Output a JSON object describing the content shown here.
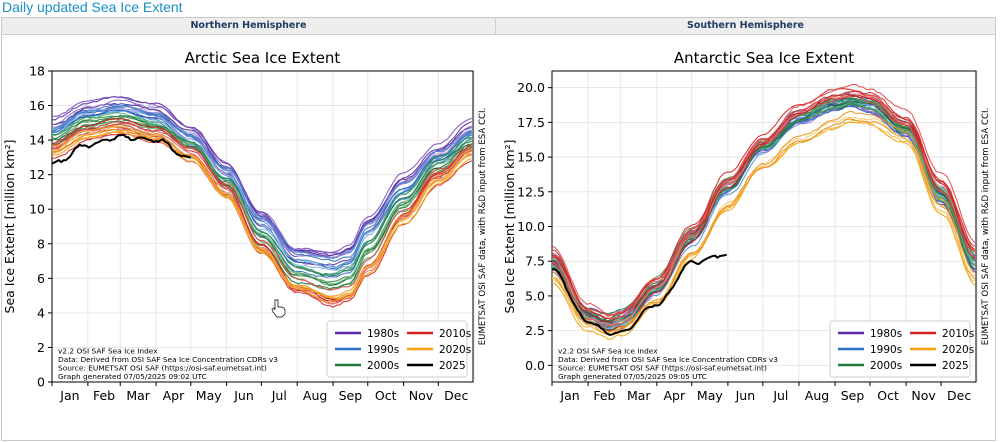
{
  "page_title": "Daily updated Sea Ice Extent",
  "panels": {
    "north": {
      "header": "Northern Hemisphere"
    },
    "south": {
      "header": "Southern Hemisphere"
    }
  },
  "icons": {
    "cursor": "hand-pointer-icon"
  },
  "chart_data": [
    {
      "type": "line",
      "title": "Arctic Sea Ice Extent",
      "xlabel": "",
      "ylabel": "Sea Ice Extent [million km²]",
      "x_ticks": [
        "Jan",
        "Feb",
        "Mar",
        "Apr",
        "May",
        "Jun",
        "Jul",
        "Aug",
        "Sep",
        "Oct",
        "Nov",
        "Dec"
      ],
      "y_ticks": [
        "0",
        "2",
        "4",
        "6",
        "8",
        "10",
        "12",
        "14",
        "16",
        "18"
      ],
      "ylim": [
        0,
        18
      ],
      "grid": true,
      "legend_position": "bottom-right",
      "legend": [
        {
          "label": "1980s",
          "color": "#5b2aa6"
        },
        {
          "label": "1990s",
          "color": "#2b73c2"
        },
        {
          "label": "2000s",
          "color": "#1f7a3a"
        },
        {
          "label": "2010s",
          "color": "#d62020"
        },
        {
          "label": "2020s",
          "color": "#f2a20c"
        },
        {
          "label": "2025",
          "color": "#000000"
        }
      ],
      "annotation": [
        "v2.2 OSI SAF Sea Ice Index",
        "Data: Derived from OSI SAF Sea Ice Concentration CDRs v3",
        "Source: EUMETSAT OSI SAF (https://osi-saf.eumetsat.int)",
        "Graph generated 07/05/2025 09:02 UTC"
      ],
      "side_note": "EUMETSAT OSI SAF data, with R&D input from ESA CCI.",
      "x_day": [
        1,
        32,
        60,
        91,
        121,
        152,
        182,
        213,
        244,
        258,
        274,
        305,
        335,
        365
      ],
      "series": [
        {
          "name": "1980s",
          "values": [
            14.8,
            15.8,
            16.1,
            15.7,
            14.5,
            12.4,
            9.6,
            7.5,
            7.3,
            7.6,
            9.2,
            11.6,
            13.3,
            14.7
          ]
        },
        {
          "name": "1990s",
          "values": [
            14.5,
            15.5,
            15.8,
            15.3,
            14.0,
            12.0,
            9.1,
            7.0,
            6.6,
            6.9,
            8.6,
            11.0,
            12.9,
            14.3
          ]
        },
        {
          "name": "2000s",
          "values": [
            14.0,
            15.0,
            15.3,
            14.8,
            13.7,
            11.5,
            8.4,
            6.2,
            5.7,
            6.0,
            7.6,
            10.3,
            12.5,
            13.8
          ]
        },
        {
          "name": "2010s",
          "values": [
            13.5,
            14.5,
            14.8,
            14.3,
            13.2,
            11.0,
            7.7,
            5.4,
            4.7,
            5.0,
            6.6,
            9.6,
            12.0,
            13.4
          ]
        },
        {
          "name": "2020s",
          "values": [
            13.3,
            14.3,
            14.6,
            14.1,
            13.0,
            10.8,
            7.6,
            5.5,
            4.9,
            5.1,
            6.6,
            9.4,
            11.7,
            13.2
          ]
        },
        {
          "name": "2025",
          "values": [
            12.6,
            13.7,
            14.2,
            14.0,
            12.9
          ]
        }
      ]
    },
    {
      "type": "line",
      "title": "Antarctic Sea Ice Extent",
      "xlabel": "",
      "ylabel": "Sea Ice Extent [million km²]",
      "x_ticks": [
        "Jan",
        "Feb",
        "Mar",
        "Apr",
        "May",
        "Jun",
        "Jul",
        "Aug",
        "Sep",
        "Oct",
        "Nov",
        "Dec"
      ],
      "y_ticks": [
        "0.0",
        "2.5",
        "5.0",
        "7.5",
        "10.0",
        "12.5",
        "15.0",
        "17.5",
        "20.0"
      ],
      "ylim": [
        -1.2,
        21.2
      ],
      "grid": true,
      "legend_position": "bottom-right",
      "legend": [
        {
          "label": "1980s",
          "color": "#5b2aa6"
        },
        {
          "label": "1990s",
          "color": "#2b73c2"
        },
        {
          "label": "2000s",
          "color": "#1f7a3a"
        },
        {
          "label": "2010s",
          "color": "#d62020"
        },
        {
          "label": "2020s",
          "color": "#f2a20c"
        },
        {
          "label": "2025",
          "color": "#000000"
        }
      ],
      "annotation": [
        "v2.2 OSI SAF Sea Ice Index",
        "Data: Derived from OSI SAF Sea Ice Concentration CDRs v3",
        "Source: EUMETSAT OSI SAF (https://osi-saf.eumetsat.int)",
        "Graph generated 07/05/2025 09:05 UTC"
      ],
      "side_note": "EUMETSAT OSI SAF data, with R&D input from ESA CCI.",
      "x_day": [
        1,
        32,
        50,
        60,
        91,
        121,
        152,
        182,
        213,
        244,
        258,
        274,
        305,
        335,
        365
      ],
      "series": [
        {
          "name": "1980s",
          "values": [
            7.5,
            3.6,
            3.0,
            3.3,
            5.6,
            9.2,
            12.8,
            15.6,
            17.6,
            18.7,
            18.9,
            18.6,
            16.9,
            12.2,
            7.4
          ]
        },
        {
          "name": "1990s",
          "values": [
            7.3,
            3.5,
            2.9,
            3.2,
            5.5,
            9.1,
            12.7,
            15.6,
            17.7,
            18.8,
            19.0,
            18.7,
            17.0,
            12.4,
            7.5
          ]
        },
        {
          "name": "2000s",
          "values": [
            7.6,
            3.7,
            3.1,
            3.4,
            5.7,
            9.3,
            12.9,
            15.7,
            17.7,
            18.8,
            19.0,
            18.8,
            17.1,
            12.5,
            7.6
          ]
        },
        {
          "name": "2010s",
          "values": [
            7.9,
            3.8,
            3.2,
            3.5,
            5.9,
            9.6,
            13.3,
            16.1,
            18.3,
            19.4,
            19.6,
            19.3,
            17.6,
            13.1,
            8.2
          ]
        },
        {
          "name": "2020s",
          "values": [
            6.4,
            2.9,
            2.3,
            2.6,
            4.6,
            7.9,
            11.4,
            14.3,
            16.1,
            17.3,
            17.7,
            17.6,
            16.3,
            11.4,
            6.3
          ]
        },
        {
          "name": "2025",
          "values": [
            6.9,
            3.2,
            2.3,
            2.4,
            4.4,
            7.4,
            8.0
          ]
        }
      ]
    }
  ]
}
